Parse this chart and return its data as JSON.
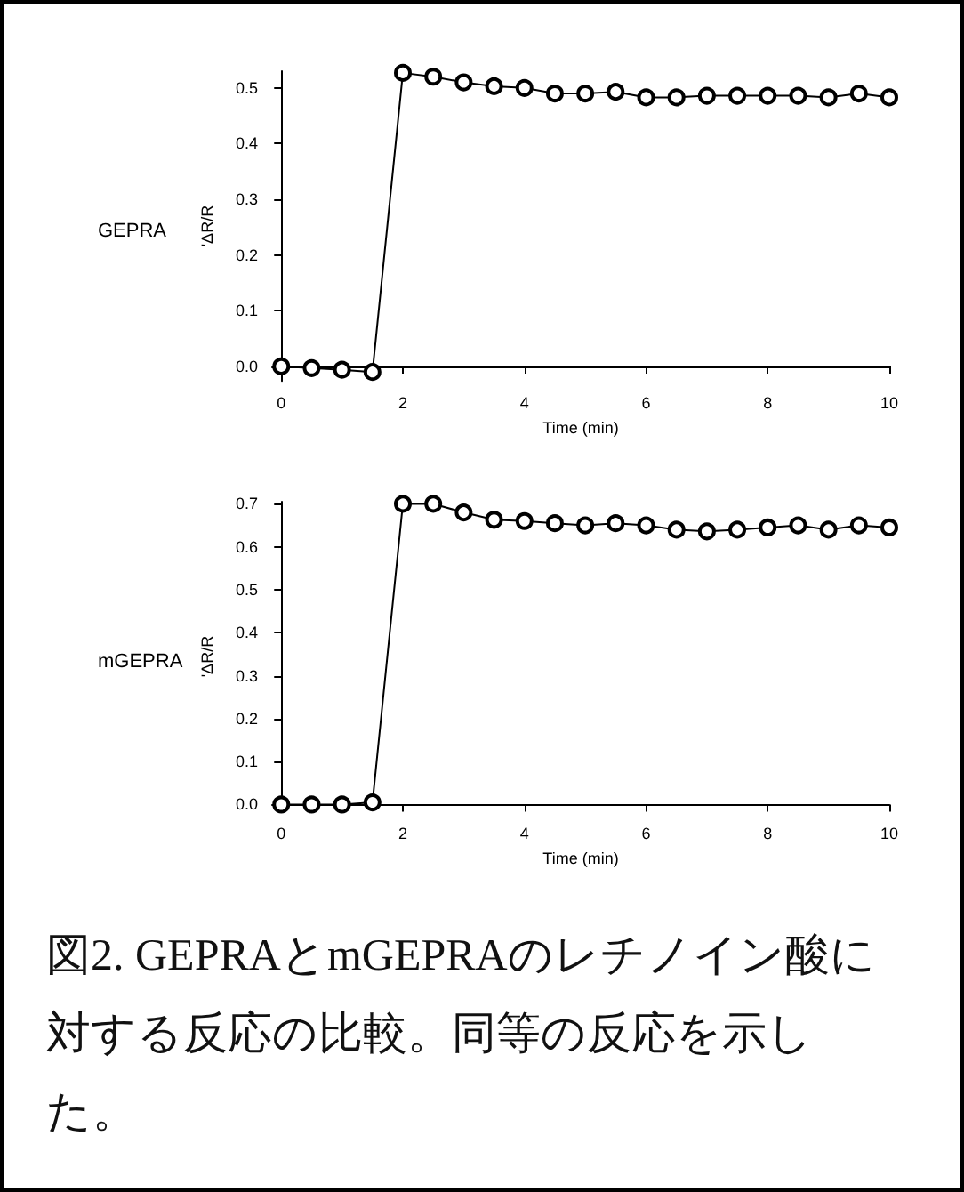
{
  "chart_data": [
    {
      "type": "line",
      "title": "GEPRA",
      "xlabel": "Time (min)",
      "ylabel": "'ΔR/R",
      "marker": "circle",
      "grid": false,
      "x": [
        0,
        0.5,
        1,
        1.5,
        2,
        2.5,
        3,
        3.5,
        4,
        4.5,
        5,
        5.5,
        6,
        6.5,
        7,
        7.5,
        8,
        8.5,
        9,
        9.5,
        10
      ],
      "series": [
        {
          "color": "#000000",
          "values": [
            0,
            -0.003,
            -0.006,
            -0.01,
            0.527,
            0.52,
            0.51,
            0.503,
            0.5,
            0.49,
            0.49,
            0.493,
            0.483,
            0.483,
            0.486,
            0.486,
            0.486,
            0.486,
            0.483,
            0.49,
            0.483
          ]
        }
      ],
      "xlim": [
        -0.15,
        10
      ],
      "xticks": [
        0,
        2,
        4,
        6,
        8,
        10
      ],
      "ylim": [
        -0.026,
        0.53
      ],
      "yticks": [
        {
          "value": 0,
          "label": "0.0"
        },
        0.1,
        0.2,
        0.3,
        0.4,
        0.5
      ]
    },
    {
      "type": "line",
      "title": "mGEPRA",
      "xlabel": "Time (min)",
      "ylabel": "'ΔR/R",
      "marker": "circle",
      "grid": false,
      "x": [
        0,
        0.5,
        1,
        1.5,
        2,
        2.5,
        3,
        3.5,
        4,
        4.5,
        5,
        5.5,
        6,
        6.5,
        7,
        7.5,
        8,
        8.5,
        9,
        9.5,
        10
      ],
      "series": [
        {
          "color": "#000000",
          "values": [
            0,
            0,
            0,
            0.005,
            0.7,
            0.7,
            0.68,
            0.663,
            0.66,
            0.655,
            0.65,
            0.655,
            0.65,
            0.64,
            0.636,
            0.64,
            0.645,
            0.65,
            0.64,
            0.65,
            0.645
          ]
        }
      ],
      "xlim": [
        -0.15,
        10
      ],
      "xticks": [
        0,
        2,
        4,
        6,
        8,
        10
      ],
      "ylim": [
        -0.016,
        0.705
      ],
      "yticks": [
        {
          "value": 0,
          "label": "0.0"
        },
        0.1,
        0.2,
        0.3,
        0.4,
        0.5,
        0.6,
        0.7
      ],
      "annotations": [
        "図2. GEPRAとmGEPRAのレチノイン酸に対する反応の比較。同等の反応を示した。"
      ]
    }
  ]
}
